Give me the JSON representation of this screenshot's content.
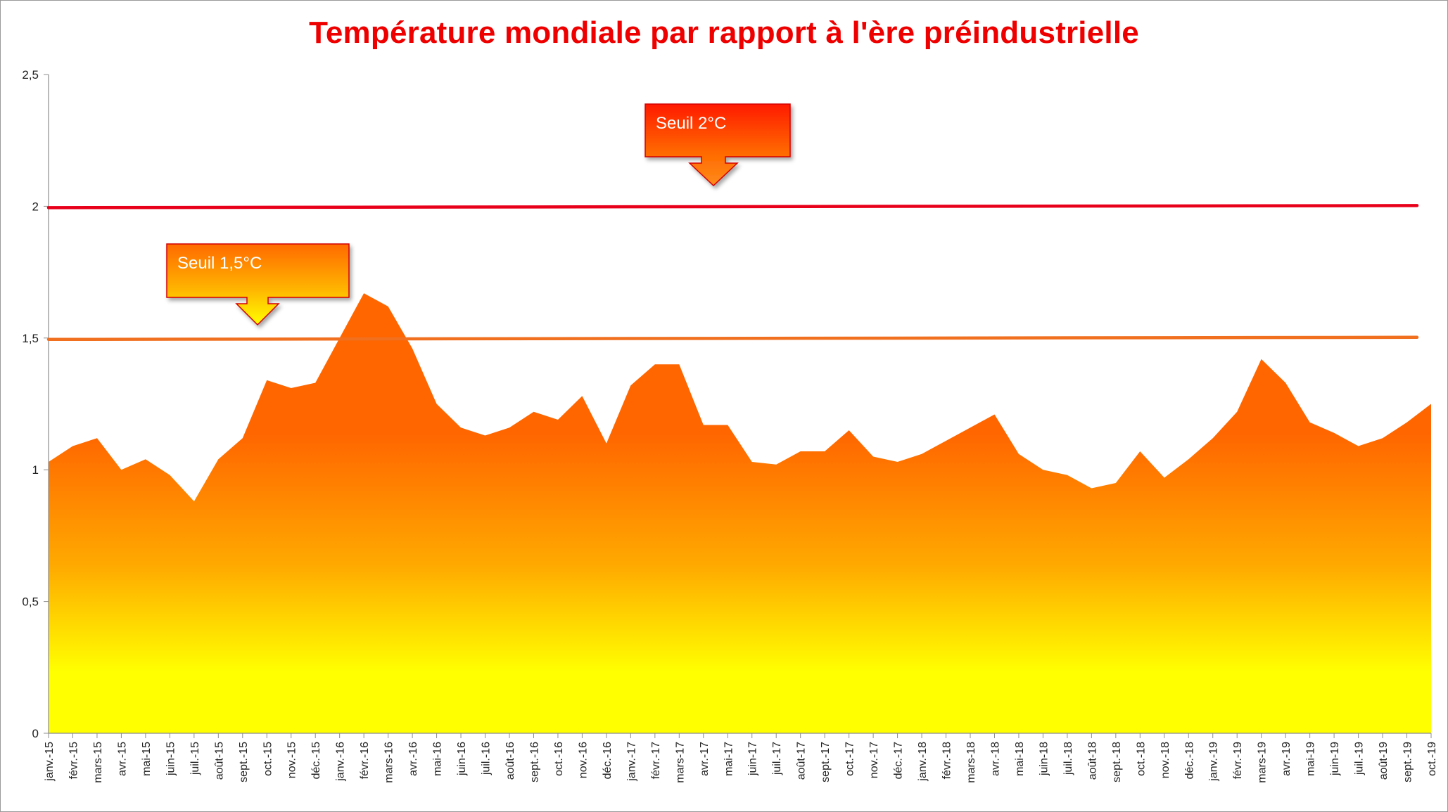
{
  "chart_data": {
    "type": "area",
    "title": "Température mondiale par rapport à l'ère préindustrielle",
    "xlabel": "",
    "ylabel": "",
    "ylim": [
      0,
      2.5
    ],
    "y_ticks": [
      "0",
      "0,5",
      "1",
      "1,5",
      "2",
      "2,5"
    ],
    "y_tick_values": [
      0,
      0.5,
      1,
      1.5,
      2,
      2.5
    ],
    "grid": false,
    "categories": [
      "janv.-15",
      "févr.-15",
      "mars-15",
      "avr.-15",
      "mai-15",
      "juin-15",
      "juil.-15",
      "août-15",
      "sept.-15",
      "oct.-15",
      "nov.-15",
      "déc.-15",
      "janv.-16",
      "févr.-16",
      "mars-16",
      "avr.-16",
      "mai-16",
      "juin-16",
      "juil.-16",
      "août-16",
      "sept.-16",
      "oct.-16",
      "nov.-16",
      "déc.-16",
      "janv.-17",
      "févr.-17",
      "mars-17",
      "avr.-17",
      "mai-17",
      "juin-17",
      "juil.-17",
      "août-17",
      "sept.-17",
      "oct.-17",
      "nov.-17",
      "déc.-17",
      "janv.-18",
      "févr.-18",
      "mars-18",
      "avr.-18",
      "mai-18",
      "juin-18",
      "juil.-18",
      "août-18",
      "sept.-18",
      "oct.-18",
      "nov.-18",
      "déc.-18",
      "janv.-19",
      "févr.-19",
      "mars-19",
      "avr.-19",
      "mai-19",
      "juin-19",
      "juil.-19",
      "août-19",
      "sept.-19",
      "oct.-19"
    ],
    "values": [
      1.03,
      1.09,
      1.12,
      1.0,
      1.04,
      0.98,
      0.88,
      1.04,
      1.12,
      1.34,
      1.31,
      1.33,
      1.5,
      1.67,
      1.62,
      1.46,
      1.25,
      1.16,
      1.13,
      1.16,
      1.22,
      1.19,
      1.28,
      1.1,
      1.32,
      1.4,
      1.4,
      1.17,
      1.17,
      1.03,
      1.02,
      1.07,
      1.07,
      1.15,
      1.05,
      1.03,
      1.06,
      1.11,
      1.16,
      1.21,
      1.06,
      1.0,
      0.98,
      0.93,
      0.95,
      1.07,
      0.97,
      1.04,
      1.12,
      1.22,
      1.42,
      1.33,
      1.18,
      1.14,
      1.09,
      1.12,
      1.18,
      1.25
    ],
    "fill_gradient": [
      "#ff6600",
      "#ffff00"
    ],
    "reference_lines": [
      {
        "label": "Seuil 2°C",
        "value": 2.0,
        "color": "#e8001a"
      },
      {
        "label": "Seuil 1,5°C",
        "value": 1.5,
        "color": "#f07020"
      }
    ]
  }
}
